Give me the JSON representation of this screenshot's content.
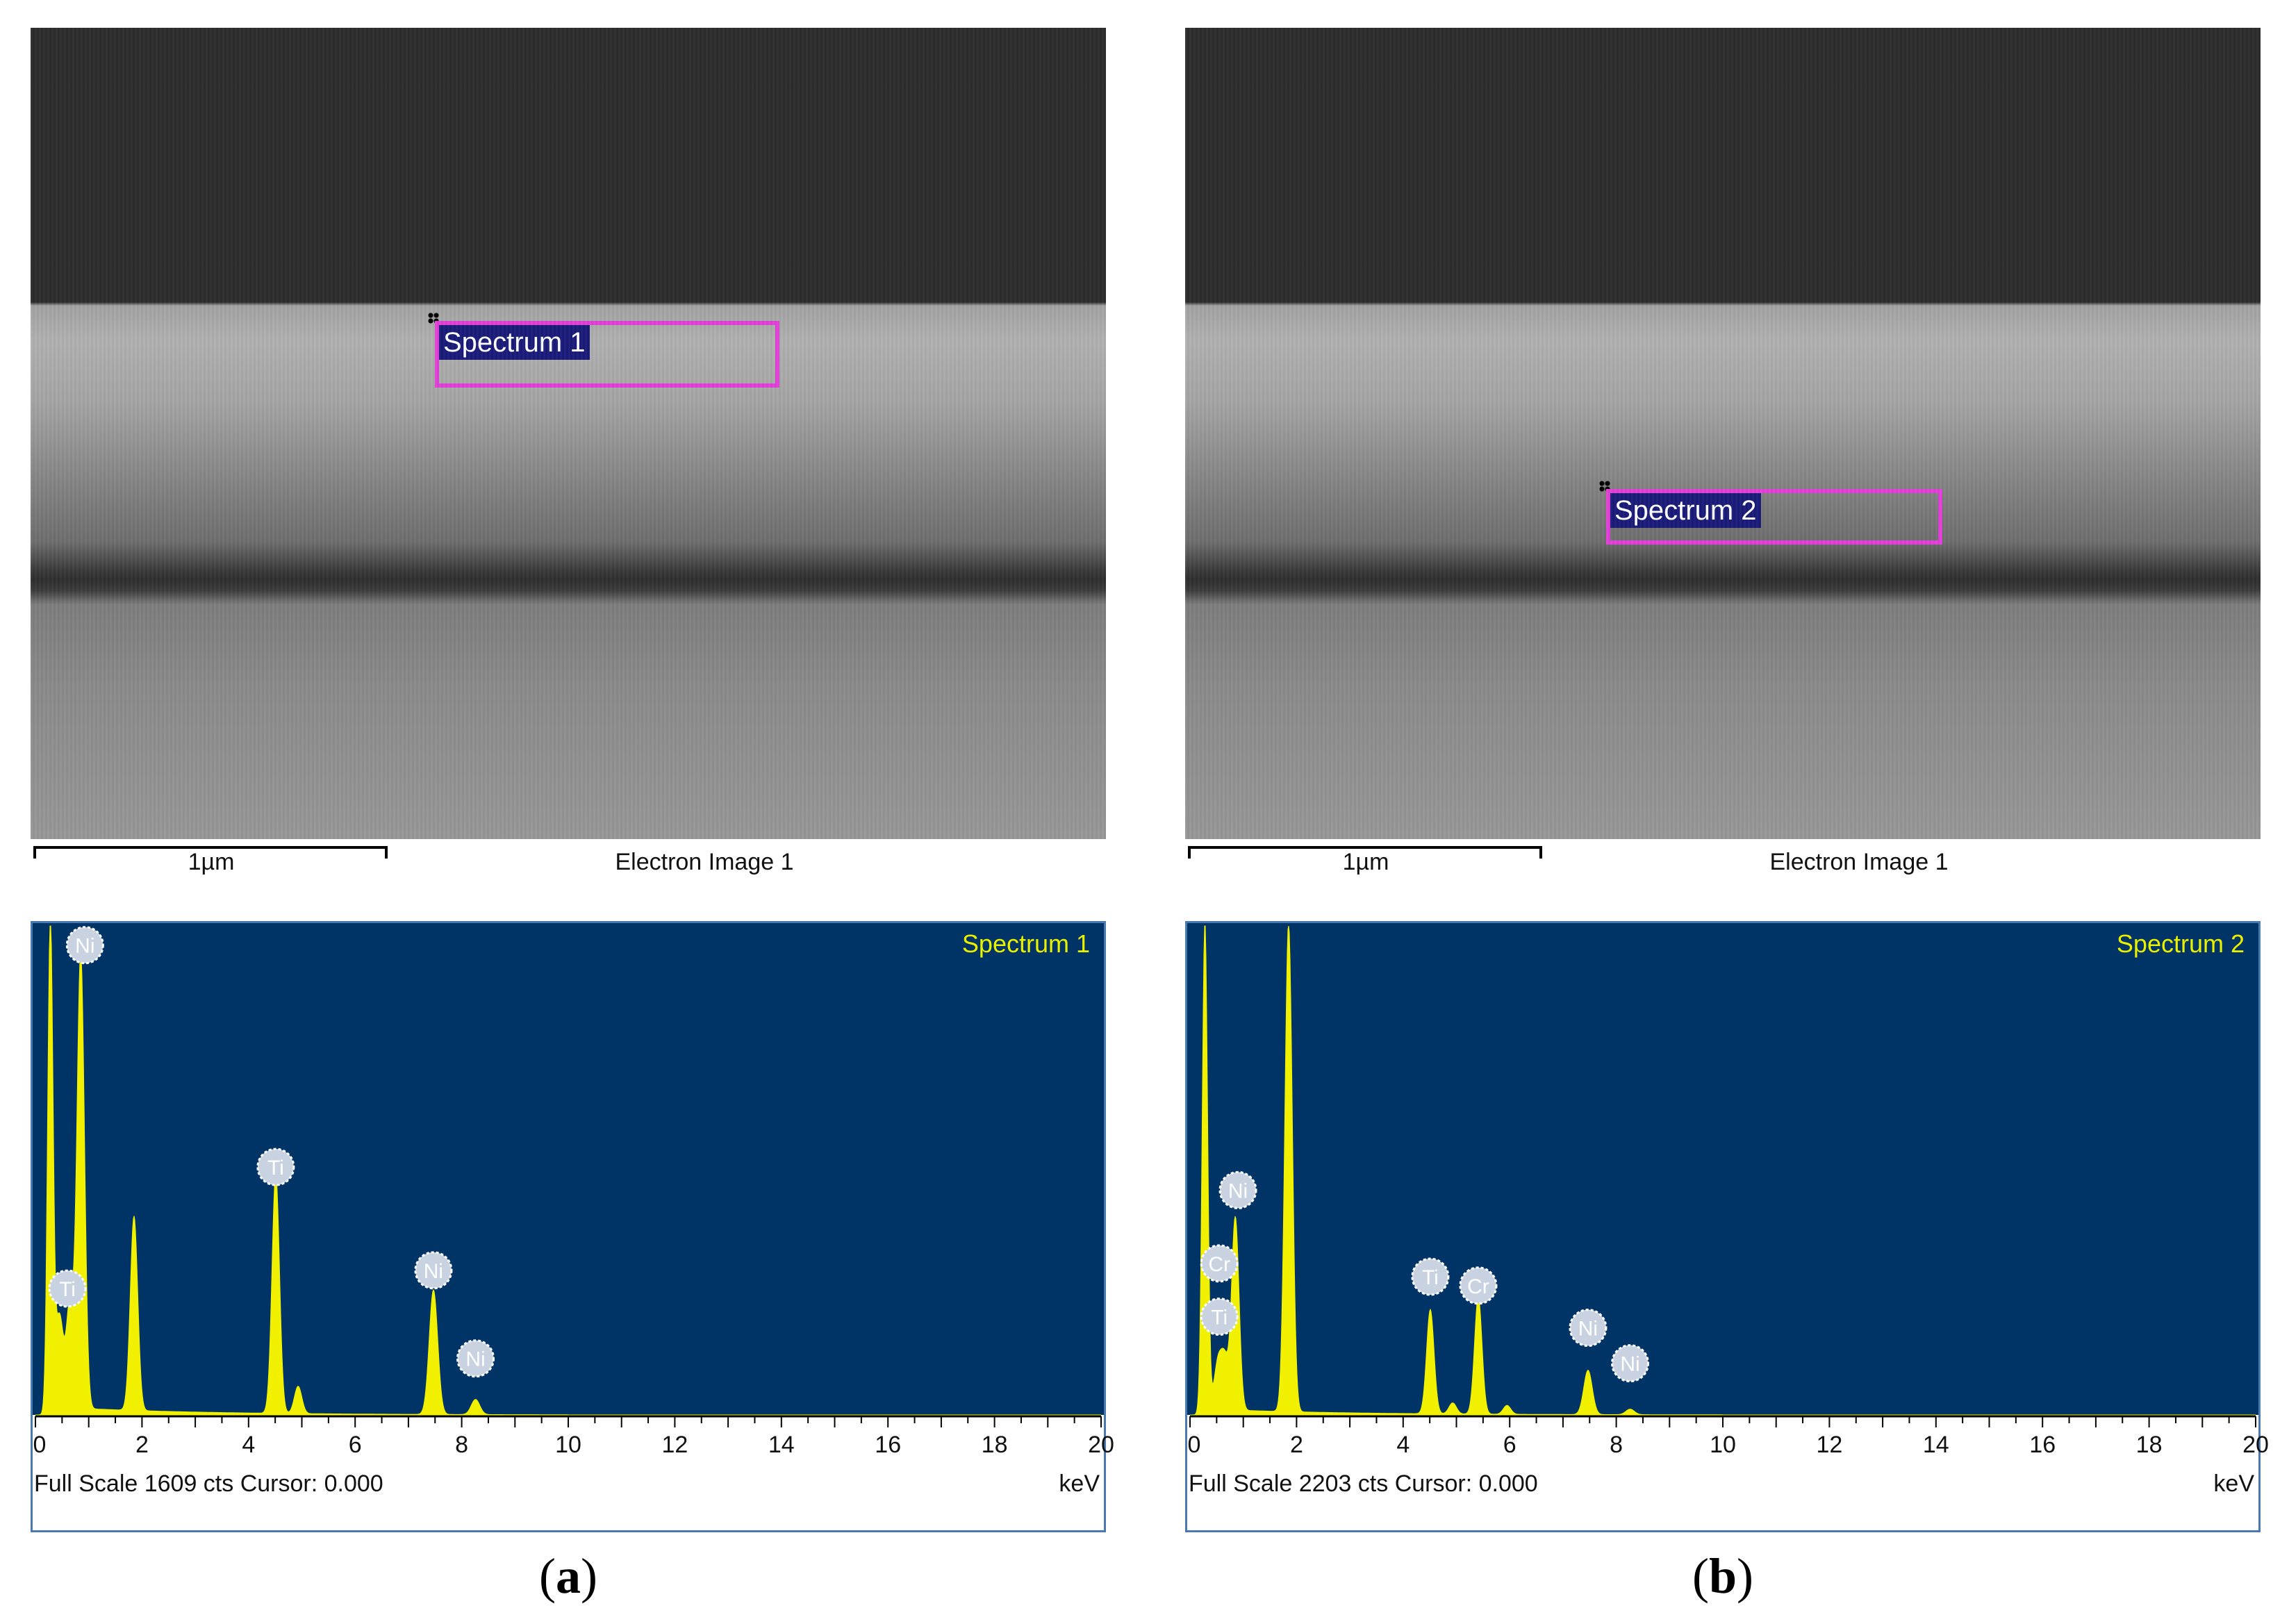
{
  "panels": [
    {
      "caption_open": "(",
      "caption_letter": "a",
      "caption_close": ")",
      "roi_label": "Spectrum 1",
      "scale_label": "1µm",
      "image_label": "Electron Image 1",
      "footer_text": "Full Scale 1609 cts Cursor: 0.000",
      "unit": "keV",
      "spectrum_title": "Spectrum 1"
    },
    {
      "caption_open": "(",
      "caption_letter": "b",
      "caption_close": ")",
      "roi_label": "Spectrum 2",
      "scale_label": "1µm",
      "image_label": "Electron Image 1",
      "footer_text": "Full Scale 2203 cts Cursor: 0.000",
      "unit": "keV",
      "spectrum_title": "Spectrum 2"
    }
  ],
  "chart_data": [
    {
      "type": "line",
      "title": "Spectrum 1",
      "xlabel": "keV",
      "ylabel": "",
      "xlim": [
        0,
        20
      ],
      "ylim": [
        0,
        1609
      ],
      "x_ticks": [
        0,
        2,
        4,
        6,
        8,
        10,
        12,
        14,
        16,
        18,
        20
      ],
      "colors": {
        "background": "#003366",
        "trace": "#f0f000",
        "text": "#e8f000",
        "marker": "#c8d2e0"
      },
      "peaks": [
        {
          "x": 0.28,
          "y": 1609,
          "width": 0.05
        },
        {
          "x": 0.45,
          "y": 300,
          "width": 0.07
        },
        {
          "x": 0.65,
          "y": 350,
          "width": 0.07
        },
        {
          "x": 0.85,
          "y": 1500,
          "width": 0.07
        },
        {
          "x": 1.85,
          "y": 640,
          "width": 0.07
        },
        {
          "x": 4.51,
          "y": 790,
          "width": 0.07
        },
        {
          "x": 4.93,
          "y": 90,
          "width": 0.07
        },
        {
          "x": 7.47,
          "y": 410,
          "width": 0.08
        },
        {
          "x": 8.26,
          "y": 50,
          "width": 0.08
        }
      ],
      "labels": [
        {
          "element": "Ni",
          "x": 0.93,
          "y": 1500
        },
        {
          "element": "Ti",
          "x": 0.6,
          "y": 370
        },
        {
          "element": "Ti",
          "x": 4.51,
          "y": 770
        },
        {
          "element": "Ni",
          "x": 7.47,
          "y": 430
        },
        {
          "element": "Ni",
          "x": 8.26,
          "y": 140
        }
      ]
    },
    {
      "type": "line",
      "title": "Spectrum 2",
      "xlabel": "keV",
      "ylabel": "",
      "xlim": [
        0,
        20
      ],
      "ylim": [
        0,
        2203
      ],
      "x_ticks": [
        0,
        2,
        4,
        6,
        8,
        10,
        12,
        14,
        16,
        18,
        20
      ],
      "colors": {
        "background": "#003366",
        "trace": "#f0f000",
        "text": "#e8f000",
        "marker": "#c8d2e0"
      },
      "peaks": [
        {
          "x": 0.28,
          "y": 2203,
          "width": 0.05
        },
        {
          "x": 0.52,
          "y": 200,
          "width": 0.07
        },
        {
          "x": 0.65,
          "y": 220,
          "width": 0.07
        },
        {
          "x": 0.85,
          "y": 870,
          "width": 0.07
        },
        {
          "x": 1.85,
          "y": 2203,
          "width": 0.07
        },
        {
          "x": 4.51,
          "y": 470,
          "width": 0.07
        },
        {
          "x": 4.93,
          "y": 50,
          "width": 0.07
        },
        {
          "x": 5.41,
          "y": 530,
          "width": 0.07
        },
        {
          "x": 5.95,
          "y": 40,
          "width": 0.07
        },
        {
          "x": 7.47,
          "y": 200,
          "width": 0.08
        },
        {
          "x": 8.26,
          "y": 25,
          "width": 0.08
        }
      ],
      "labels": [
        {
          "element": "Ni",
          "x": 0.9,
          "y": 950
        },
        {
          "element": "Cr",
          "x": 0.55,
          "y": 620
        },
        {
          "element": "Ti",
          "x": 0.55,
          "y": 380
        },
        {
          "element": "Ti",
          "x": 4.51,
          "y": 560
        },
        {
          "element": "Cr",
          "x": 5.41,
          "y": 520
        },
        {
          "element": "Ni",
          "x": 7.47,
          "y": 330
        },
        {
          "element": "Ni",
          "x": 8.26,
          "y": 170
        }
      ]
    }
  ]
}
